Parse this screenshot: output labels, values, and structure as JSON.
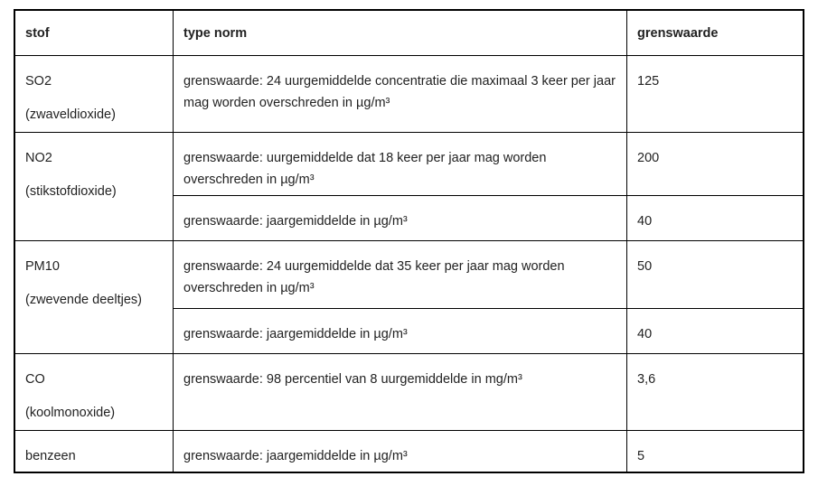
{
  "headers": {
    "stof": "stof",
    "type_norm": "type norm",
    "grenswaarde": "grenswaarde"
  },
  "rows": [
    {
      "stof": "SO2",
      "name": "(zwaveldioxide)",
      "norms": [
        {
          "type": "grenswaarde: 24 uurgemiddelde concentratie die maximaal 3 keer per jaar mag worden overschreden in µg/m³",
          "value": "125"
        }
      ]
    },
    {
      "stof": "NO2",
      "name": "(stikstofdioxide)",
      "norms": [
        {
          "type": "grenswaarde: uurgemiddelde dat 18 keer per jaar mag worden overschreden in µg/m³",
          "value": "200"
        },
        {
          "type": "grenswaarde: jaargemiddelde in µg/m³",
          "value": "40"
        }
      ]
    },
    {
      "stof": "PM10",
      "name": "(zwevende deeltjes)",
      "norms": [
        {
          "type": "grenswaarde: 24 uurgemiddelde dat 35 keer per jaar mag worden overschreden in µg/m³",
          "value": "50"
        },
        {
          "type": "grenswaarde: jaargemiddelde in µg/m³",
          "value": "40"
        }
      ]
    },
    {
      "stof": "CO",
      "name": "(koolmonoxide)",
      "norms": [
        {
          "type": "grenswaarde: 98 percentiel van 8 uurgemiddelde in mg/m³",
          "value": "3,6"
        }
      ]
    },
    {
      "stof": "benzeen",
      "name": "",
      "norms": [
        {
          "type": "grenswaarde: jaargemiddelde in µg/m³",
          "value": "5"
        }
      ]
    }
  ]
}
